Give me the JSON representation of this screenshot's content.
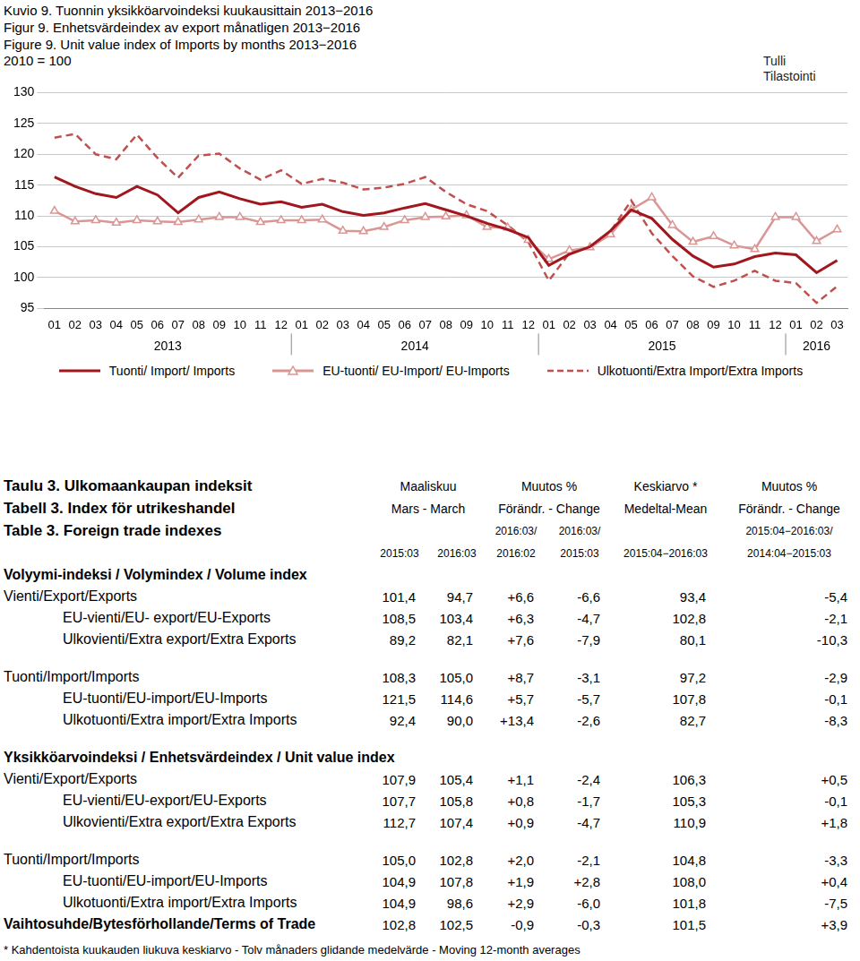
{
  "chart_data": {
    "type": "line",
    "title": [
      "Kuvio 9. Tuonnin yksikköarvoindeksi kuukausittain 2013−2016",
      "Figur 9. Enhetsvärdeindex av export månatligen 2013−2016",
      "Figure 9. Unit value index of Imports by months 2013−2016"
    ],
    "subtitle": "2010 = 100",
    "source": [
      "Tulli",
      "Tilastointi"
    ],
    "categories": [
      "01",
      "02",
      "03",
      "04",
      "05",
      "06",
      "07",
      "08",
      "09",
      "10",
      "11",
      "12",
      "01",
      "02",
      "03",
      "04",
      "05",
      "06",
      "07",
      "08",
      "09",
      "10",
      "11",
      "12",
      "01",
      "02",
      "03",
      "04",
      "05",
      "06",
      "07",
      "08",
      "09",
      "10",
      "11",
      "12",
      "01",
      "02",
      "03"
    ],
    "year_groups": [
      {
        "label": "2013",
        "months": 12
      },
      {
        "label": "2014",
        "months": 12
      },
      {
        "label": "2015",
        "months": 12
      },
      {
        "label": "2016",
        "months": 3
      }
    ],
    "series": [
      {
        "name": "Tuonti/ Import/ Imports",
        "color": "#a0171e",
        "line_style": "solid",
        "values": [
          116.3,
          114.8,
          113.6,
          113.0,
          114.8,
          113.4,
          110.5,
          113.0,
          113.9,
          112.8,
          111.9,
          112.3,
          111.4,
          111.9,
          110.7,
          110.1,
          110.5,
          111.3,
          112.0,
          111.0,
          110.0,
          108.8,
          107.8,
          106.5,
          102.0,
          103.8,
          105.0,
          107.6,
          111.0,
          109.6,
          106.2,
          103.5,
          101.7,
          102.2,
          103.4,
          104.0,
          103.7,
          100.8,
          102.8
        ]
      },
      {
        "name": "EU-tuonti/ EU-Import/ EU-Imports",
        "color": "#da9694",
        "line_style": "solid",
        "marker": "triangle",
        "values": [
          110.8,
          109.1,
          109.3,
          108.9,
          109.3,
          109.1,
          109.0,
          109.4,
          109.8,
          109.8,
          109.0,
          109.3,
          109.3,
          109.4,
          107.6,
          107.5,
          108.2,
          109.3,
          109.8,
          109.9,
          110.1,
          108.2,
          108.1,
          106.1,
          103.0,
          104.4,
          104.9,
          107.0,
          111.0,
          113.0,
          108.5,
          105.8,
          106.7,
          105.2,
          104.6,
          109.8,
          109.8,
          105.9,
          107.8
        ]
      },
      {
        "name": "Ulkotuonti/Extra Import/Extra Imports",
        "color": "#c0504d",
        "line_style": "dashed",
        "values": [
          122.7,
          123.3,
          120.0,
          119.2,
          123.2,
          119.4,
          116.2,
          119.8,
          120.1,
          117.7,
          115.9,
          117.4,
          115.2,
          116.0,
          115.4,
          114.3,
          114.6,
          115.2,
          116.3,
          113.9,
          111.9,
          110.8,
          108.5,
          105.8,
          99.5,
          104.0,
          104.9,
          107.5,
          112.5,
          107.2,
          103.5,
          100.2,
          98.5,
          99.5,
          101.1,
          99.5,
          99.1,
          95.9,
          98.6
        ]
      }
    ],
    "ylim": [
      95,
      130
    ],
    "yticks": [
      95,
      100,
      105,
      110,
      115,
      120,
      125,
      130
    ],
    "grid": true,
    "legend": "bottom"
  },
  "table": {
    "title": [
      "Taulu 3. Ulkomaankaupan indeksit",
      "Tabell 3. Index för utrikeshandel",
      "Table 3. Foreign trade indexes"
    ],
    "header": [
      [
        "Maaliskuu",
        "Muutos %",
        "Keskiarvo *",
        "Muutos %"
      ],
      [
        "Mars - March",
        "Förändr. - Change",
        "Medeltal-Mean",
        "Förändr. - Change"
      ]
    ],
    "subheader": [
      null,
      null,
      "2016:03/",
      "2016:03/",
      null,
      "2015:04−2016:03/"
    ],
    "columns": [
      "2015:03",
      "2016:03",
      "2016:02",
      "2015:03",
      "2015:04−2016:03",
      "2014:04−2015:03"
    ],
    "sections": [
      {
        "title": "Volyymi-indeksi / Volymindex / Volume index",
        "groups": [
          [
            {
              "label": "Vienti/Export/Exports",
              "values": [
                "101,4",
                "94,7",
                "+6,6",
                "-6,6",
                "93,4",
                "-5,4"
              ]
            },
            {
              "label": "EU-vienti/EU- export/EU-Exports",
              "indent": true,
              "values": [
                "108,5",
                "103,4",
                "+6,3",
                "-4,7",
                "102,8",
                "-2,1"
              ]
            },
            {
              "label": "Ulkovienti/Extra export/Extra Exports",
              "indent": true,
              "values": [
                "89,2",
                "82,1",
                "+7,6",
                "-7,9",
                "80,1",
                "-10,3"
              ]
            }
          ],
          [
            {
              "label": "Tuonti/Import/Imports",
              "values": [
                "108,3",
                "105,0",
                "+8,7",
                "-3,1",
                "97,2",
                "-2,9"
              ]
            },
            {
              "label": "EU-tuonti/EU-import/EU-Imports",
              "indent": true,
              "values": [
                "121,5",
                "114,6",
                "+5,7",
                "-5,7",
                "107,8",
                "-0,1"
              ]
            },
            {
              "label": "Ulkotuonti/Extra import/Extra Imports",
              "indent": true,
              "values": [
                "92,4",
                "90,0",
                "+13,4",
                "-2,6",
                "82,7",
                "-8,3"
              ]
            }
          ]
        ]
      },
      {
        "title": "Yksikköarvoindeksi / Enhetsvärdeindex / Unit value index",
        "groups": [
          [
            {
              "label": "Vienti/Export/Exports",
              "values": [
                "107,9",
                "105,4",
                "+1,1",
                "-2,4",
                "106,3",
                "+0,5"
              ]
            },
            {
              "label": "EU-vienti/EU-export/EU-Exports",
              "indent": true,
              "values": [
                "107,7",
                "105,8",
                "+0,8",
                "-1,7",
                "105,3",
                "-0,1"
              ]
            },
            {
              "label": "Ulkovienti/Extra export/Extra Exports",
              "indent": true,
              "values": [
                "112,7",
                "107,4",
                "+0,9",
                "-4,7",
                "110,9",
                "+1,8"
              ]
            }
          ],
          [
            {
              "label": "Tuonti/Import/Imports",
              "values": [
                "105,0",
                "102,8",
                "+2,0",
                "-2,1",
                "104,8",
                "-3,3"
              ]
            },
            {
              "label": "EU-tuonti/EU-import/EU-Imports",
              "indent": true,
              "values": [
                "104,9",
                "107,8",
                "+1,9",
                "+2,8",
                "108,0",
                "+0,4"
              ]
            },
            {
              "label": "Ulkotuonti/Extra import/Extra Imports",
              "indent": true,
              "values": [
                "104,9",
                "98,6",
                "+2,9",
                "-6,0",
                "101,8",
                "-7,5"
              ]
            },
            {
              "label": "Vaihtosuhde/Bytesförhollande/Terms of Trade",
              "bold": true,
              "values": [
                "102,8",
                "102,5",
                "-0,9",
                "-0,3",
                "101,5",
                "+3,9"
              ]
            }
          ]
        ]
      }
    ],
    "footnote": "* Kahdentoista kuukauden liukuva keskiarvo - Tolv månaders glidande medelvärde - Moving 12-month averages"
  }
}
